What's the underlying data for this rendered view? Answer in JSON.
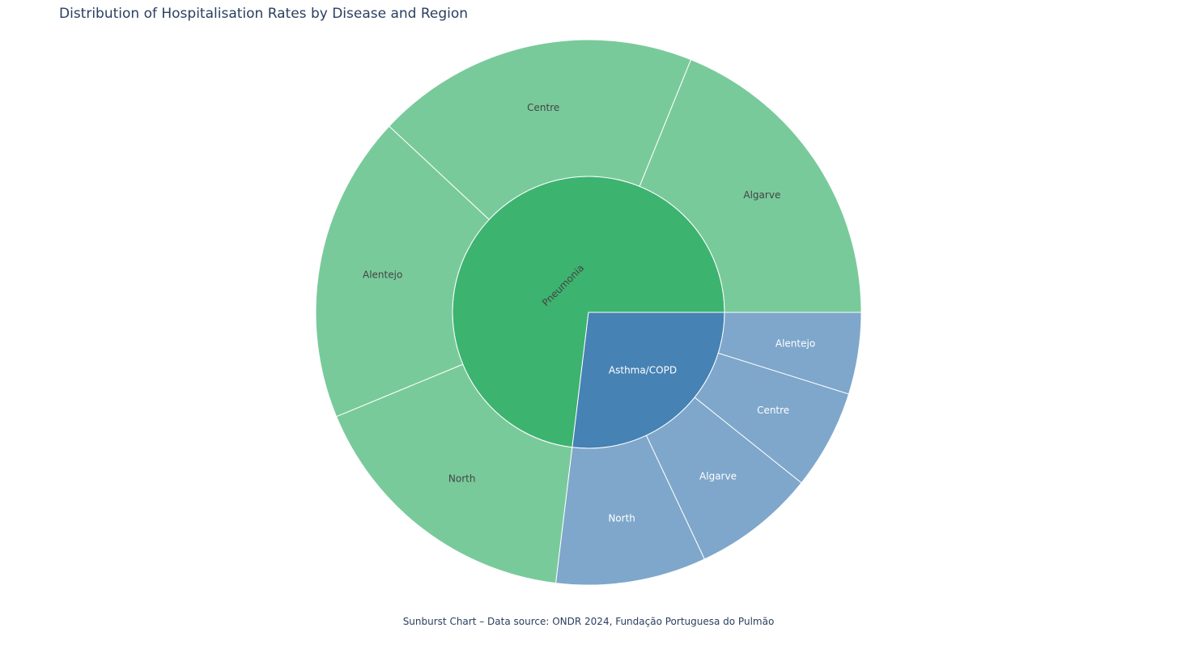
{
  "chart_data": {
    "type": "sunburst",
    "title": "Distribution of Hospitalisation Rates by Disease and Region",
    "caption": "Sunburst Chart – Data source: ONDR 2024, Fundação Portuguesa do Pulmão",
    "colors": {
      "Pneumonia": "#3db370",
      "Pneumonia_child": "#79ca9b",
      "Asthma/COPD": "#4682b4",
      "Asthma/COPD_child": "#7ea7cb",
      "border": "#ffffff",
      "dark_text": "#444444",
      "light_text": "#ffffff"
    },
    "series": [
      {
        "name": "Pneumonia",
        "children": [
          {
            "name": "North",
            "value": 17.4
          },
          {
            "name": "Alentejo",
            "value": 18.8
          },
          {
            "name": "Centre",
            "value": 19.8
          },
          {
            "name": "Algarve",
            "value": 19.5
          }
        ]
      },
      {
        "name": "Asthma/COPD",
        "children": [
          {
            "name": "Alentejo",
            "value": 5.0
          },
          {
            "name": "Centre",
            "value": 6.1
          },
          {
            "name": "Algarve",
            "value": 7.5
          },
          {
            "name": "North",
            "value": 9.2
          }
        ]
      }
    ]
  }
}
